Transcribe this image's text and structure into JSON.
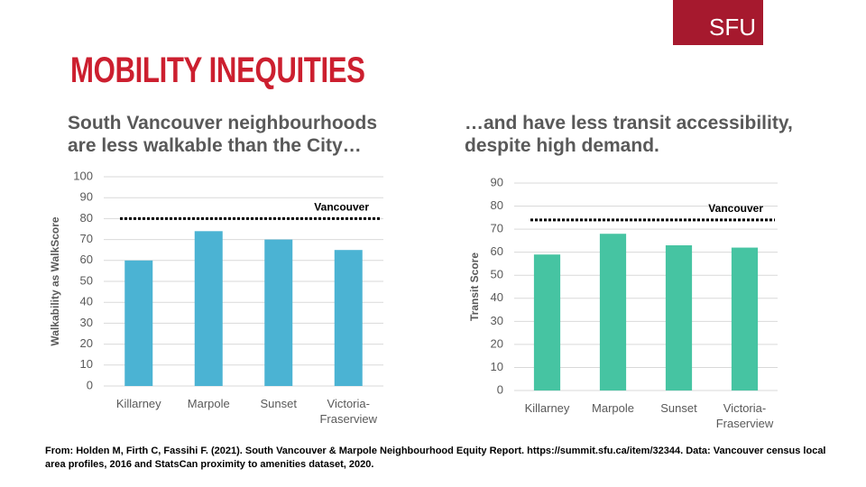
{
  "slide": {
    "logo": "SFU",
    "title": "MOBILITY INEQUITIES",
    "source": "From: Holden M, Firth C, Fassihi F. (2021). South Vancouver & Marpole Neighbourhood Equity Report. https://summit.sfu.ca/item/32344. Data: Vancouver census local area profiles, 2016 and StatsCan proximity to amenities dataset, 2020."
  },
  "chart_data": [
    {
      "type": "bar",
      "title": "South Vancouver neighbourhoods are less walkable than the City…",
      "y_label": "Walkability as WalkScore",
      "categories": [
        "Killarney",
        "Marpole",
        "Sunset",
        "Victoria-Fraserview"
      ],
      "values": [
        60,
        74,
        70,
        65
      ],
      "color": "#4bb3d3",
      "reference": {
        "label": "Vancouver",
        "value": 80
      },
      "ylim": [
        0,
        100
      ],
      "yticks": [
        0,
        10,
        20,
        30,
        40,
        50,
        60,
        70,
        80,
        90,
        100
      ],
      "grid": true
    },
    {
      "type": "bar",
      "title": "…and have less transit accessibility, despite high demand.",
      "y_label": "Transit Score",
      "categories": [
        "Killarney",
        "Marpole",
        "Sunset",
        "Victoria-Fraserview"
      ],
      "values": [
        59,
        68,
        63,
        62
      ],
      "color": "#46c4a2",
      "reference": {
        "label": "Vancouver",
        "value": 74
      },
      "ylim": [
        0,
        90
      ],
      "yticks": [
        0,
        10,
        20,
        30,
        40,
        50,
        60,
        70,
        80,
        90
      ],
      "grid": true
    }
  ]
}
